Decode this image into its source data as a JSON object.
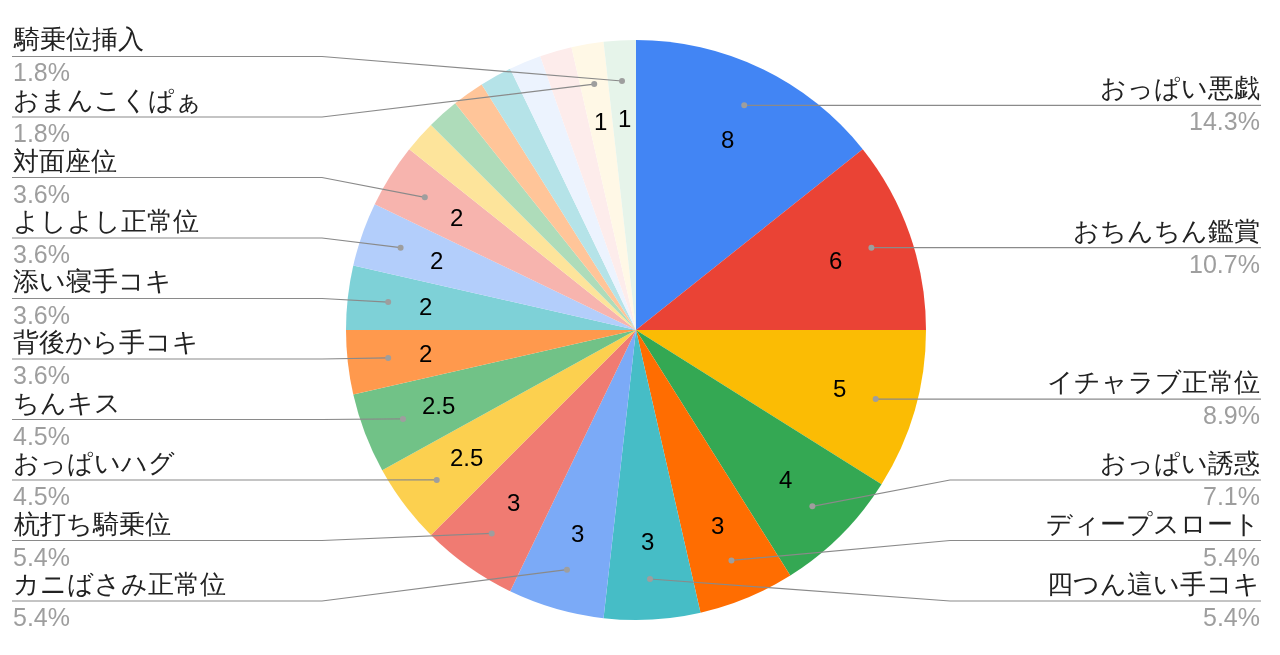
{
  "chart_data": {
    "type": "pie",
    "categories": [
      "おっぱい悪戯",
      "おちんちん鑑賞",
      "イチャラブ正常位",
      "おっぱい誘惑",
      "ディープスロート",
      "四つん這い手コキ",
      "カニばさみ正常位",
      "杭打ち騎乗位",
      "おっぱいハグ",
      "ちんキス",
      "背後から手コキ",
      "添い寝手コキ",
      "よしよし正常位",
      "対面座位",
      null,
      null,
      null,
      null,
      null,
      null,
      "おまんこくぱぁ",
      "騎乗位挿入"
    ],
    "values": [
      8,
      6,
      5,
      4,
      3,
      3,
      3,
      3,
      2.5,
      2.5,
      2,
      2,
      2,
      2,
      1,
      1,
      1,
      1,
      1,
      1,
      1,
      1
    ],
    "colors": [
      "#4285f4",
      "#ea4335",
      "#fbbc04",
      "#34a853",
      "#ff6d01",
      "#46bdc6",
      "#7baaf7",
      "#f07b72",
      "#fcd04f",
      "#71c287",
      "#ff994d",
      "#7ed1d7",
      "#b3cefb",
      "#f7b4ae",
      "#fde49b",
      "#aedcba",
      "#ffc599",
      "#b5e3e8",
      "#ecf3fe",
      "#fdeceb",
      "#fff8e6",
      "#e6f4ea"
    ],
    "value_labels": [
      "8",
      "6",
      "5",
      "4",
      "3",
      "3",
      "3",
      "3",
      "2.5",
      "2.5",
      "2",
      "2",
      "2",
      "2",
      null,
      null,
      null,
      null,
      null,
      null,
      "1",
      "1"
    ],
    "annotations": [
      "14.3%",
      "10.7%",
      "8.9%",
      "7.1%",
      "5.4%",
      "5.4%",
      "5.4%",
      "5.4%",
      "4.5%",
      "4.5%",
      "3.6%",
      "3.6%",
      "3.6%",
      "3.6%",
      "1.8%",
      "1.8%"
    ]
  }
}
